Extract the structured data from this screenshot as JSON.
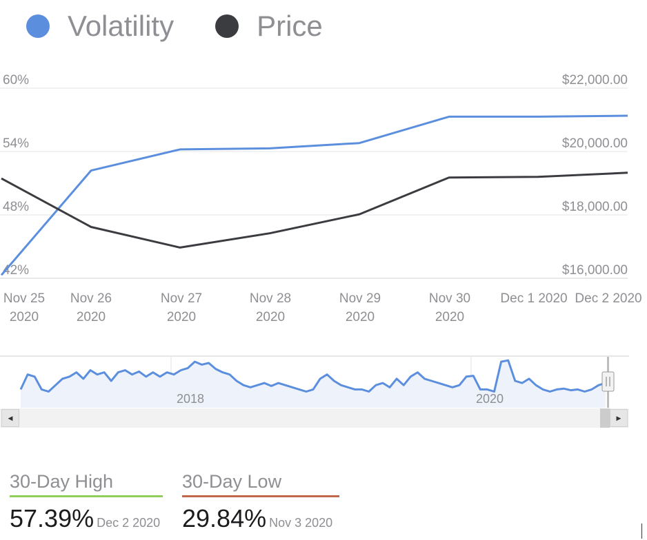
{
  "legend": [
    {
      "label": "Volatility",
      "color": "#5b8fde"
    },
    {
      "label": "Price",
      "color": "#3a3c40"
    }
  ],
  "chart_data": {
    "type": "line",
    "categories": [
      "Nov 25 2020",
      "Nov 26 2020",
      "Nov 27 2020",
      "Nov 28 2020",
      "Nov 29 2020",
      "Nov 30 2020",
      "Dec 1 2020",
      "Dec 2 2020"
    ],
    "x_tick_labels": [
      [
        "Nov 25",
        "2020"
      ],
      [
        "Nov 26",
        "2020"
      ],
      [
        "Nov 27",
        "2020"
      ],
      [
        "Nov 28",
        "2020"
      ],
      [
        "Nov 29",
        "2020"
      ],
      [
        "Nov 30",
        "2020"
      ],
      [
        "Dec 1 2020"
      ],
      [
        "Dec 2 2020"
      ]
    ],
    "left_axis": {
      "ticks": [
        "60%",
        "54%",
        "48%",
        "42%"
      ],
      "range": [
        42,
        60
      ]
    },
    "right_axis": {
      "ticks": [
        "$22,000.00",
        "$20,000.00",
        "$18,000.00",
        "$16,000.00"
      ],
      "range": [
        16000,
        22000
      ]
    },
    "series": [
      {
        "name": "Volatility",
        "axis": "left",
        "color": "#5b8fde",
        "values": [
          42.3,
          52.2,
          54.2,
          54.3,
          54.8,
          57.3,
          57.3,
          57.39
        ]
      },
      {
        "name": "Price",
        "axis": "right",
        "color": "#3a3c40",
        "values": [
          19150,
          17620,
          16970,
          17420,
          18020,
          19180,
          19200,
          19330
        ]
      }
    ],
    "grid": true,
    "legend_position": "top-left"
  },
  "navigator": {
    "year_labels": [
      "2018",
      "2020"
    ],
    "series_color": "#5b8fde",
    "values": [
      0.3,
      0.65,
      0.6,
      0.3,
      0.25,
      0.4,
      0.55,
      0.6,
      0.7,
      0.55,
      0.75,
      0.65,
      0.7,
      0.5,
      0.7,
      0.75,
      0.65,
      0.72,
      0.6,
      0.7,
      0.6,
      0.7,
      0.65,
      0.75,
      0.8,
      0.95,
      0.88,
      0.92,
      0.78,
      0.7,
      0.65,
      0.5,
      0.4,
      0.35,
      0.4,
      0.45,
      0.38,
      0.45,
      0.4,
      0.35,
      0.3,
      0.25,
      0.3,
      0.55,
      0.65,
      0.5,
      0.4,
      0.35,
      0.3,
      0.3,
      0.25,
      0.4,
      0.45,
      0.35,
      0.55,
      0.4,
      0.6,
      0.7,
      0.55,
      0.5,
      0.45,
      0.4,
      0.35,
      0.4,
      0.6,
      0.62,
      0.3,
      0.3,
      0.25,
      0.95,
      0.98,
      0.5,
      0.45,
      0.55,
      0.4,
      0.3,
      0.25,
      0.3,
      0.32,
      0.28,
      0.3,
      0.25,
      0.3,
      0.4,
      0.45
    ]
  },
  "scrollbar": {
    "left_arrow": "◀",
    "right_arrow": "▶"
  },
  "stats": {
    "high": {
      "label": "30-Day High",
      "value": "57.39%",
      "date": "Dec 2 2020",
      "color": "#8fce5a"
    },
    "low": {
      "label": "30-Day Low",
      "value": "29.84%",
      "date": "Nov 3 2020",
      "color": "#c0664a"
    }
  }
}
